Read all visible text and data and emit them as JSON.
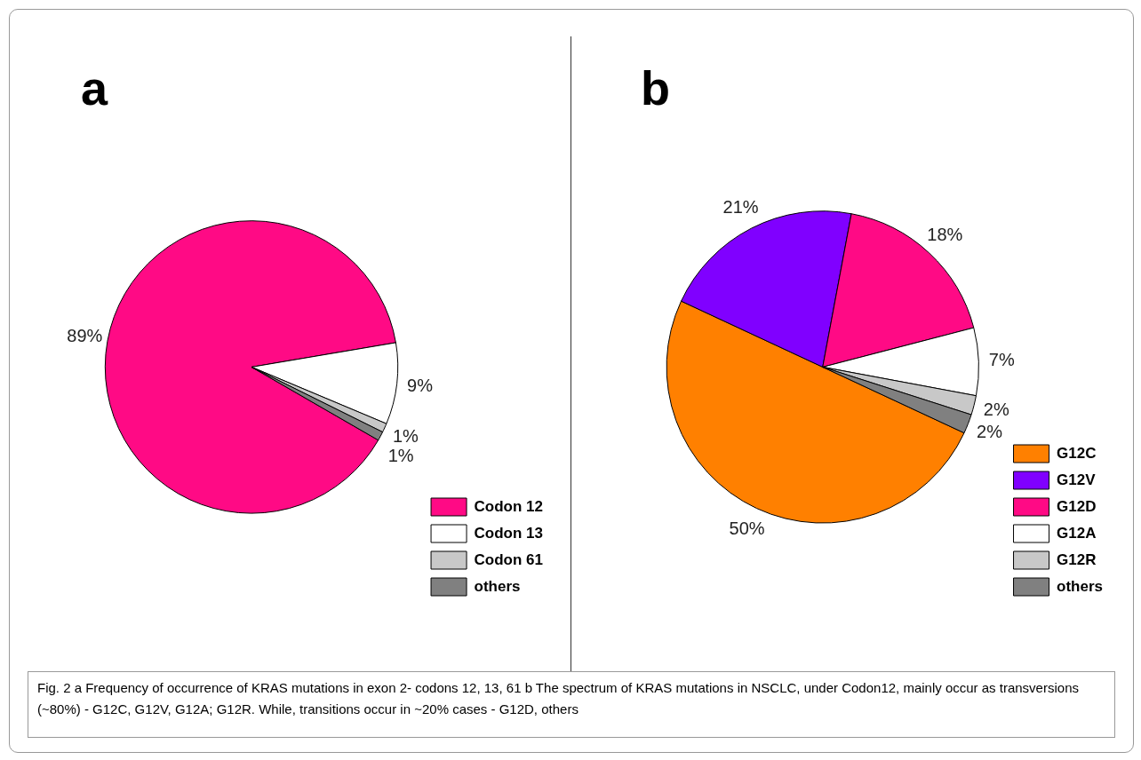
{
  "chart_data": [
    {
      "type": "pie",
      "title": "a",
      "categories": [
        "Codon 12",
        "Codon 13",
        "Codon 61",
        "others"
      ],
      "values": [
        89,
        9,
        1,
        1
      ],
      "colors": [
        "#ff0a85",
        "#ffffff",
        "#c8c8c8",
        "#808080"
      ],
      "value_labels": [
        "89%",
        "9%",
        "1%",
        "1%"
      ],
      "legend": "bottom right",
      "annotations": [
        "Fig. 2 a Frequency of occurrence of KRAS mutations in exon 2- codons 12, 13, 61 b The spectrum of KRAS mutations in NSCLC, under Codon12, mainly occur as transversions (~80%) - G12C, G12V, G12A; G12R. While, transitions occur in ~20% cases - G12D, others"
      ]
    },
    {
      "type": "pie",
      "title": "b",
      "categories": [
        "G12C",
        "G12V",
        "G12D",
        "G12A",
        "G12R",
        "others"
      ],
      "values": [
        50,
        21,
        18,
        7,
        2,
        2
      ],
      "colors": [
        "#ff8000",
        "#8000ff",
        "#ff0a85",
        "#ffffff",
        "#c8c8c8",
        "#808080"
      ],
      "value_labels": [
        "50%",
        "21%",
        "18%",
        "7%",
        "2%",
        "2%"
      ],
      "legend": "bottom right"
    }
  ]
}
